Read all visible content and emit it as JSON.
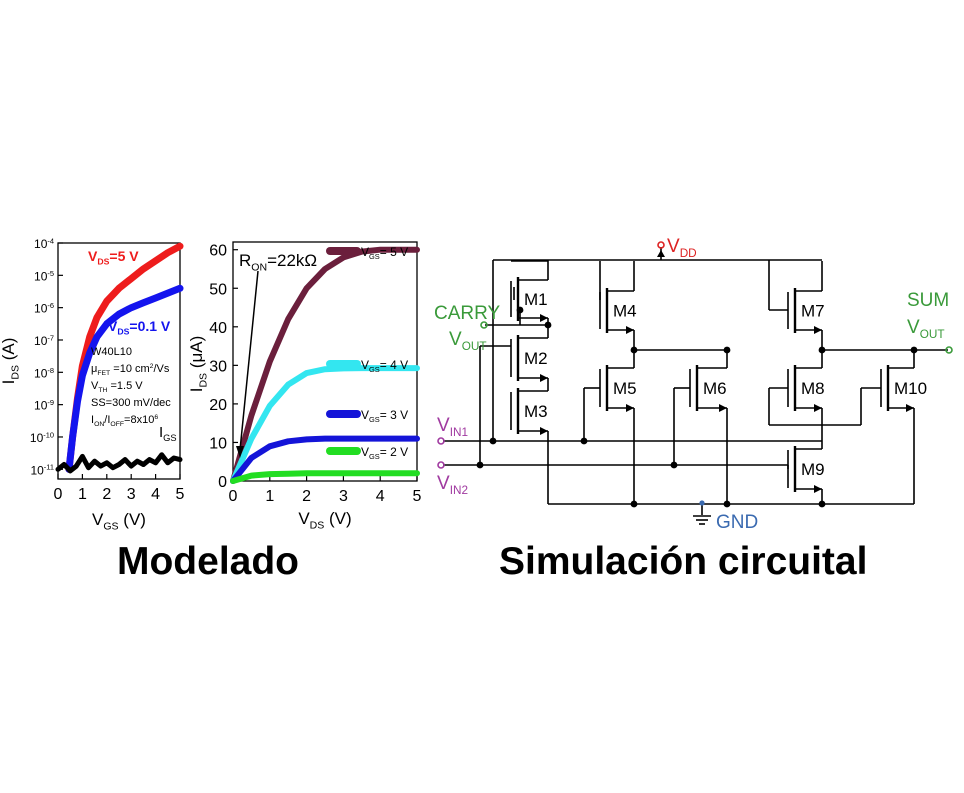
{
  "captions": {
    "left": "Modelado",
    "right": "Simulación circuital"
  },
  "colors": {
    "red": "#ee1c1c",
    "blue": "#1414ee",
    "black": "#000000",
    "maroon": "#6b1f3c",
    "cyan": "#33e6f0",
    "darkblue": "#1414d8",
    "green": "#22dd22",
    "circuit_green": "#3a9a3a",
    "circuit_purple": "#a03aa0",
    "circuit_red": "#dd2222",
    "circuit_blue": "#3a6ab0"
  },
  "chart_data": [
    {
      "type": "line",
      "xlabel": "V_GS (V)",
      "ylabel": "I_DS (A)",
      "y_scale": "log",
      "xlim": [
        0,
        5
      ],
      "ylim_exp": [
        -11.3,
        -4
      ],
      "x_ticks": [
        "0",
        "1",
        "2",
        "3",
        "4",
        "5"
      ],
      "y_ticks": [
        {
          "base": "10",
          "exp": "-4"
        },
        {
          "base": "10",
          "exp": "-5"
        },
        {
          "base": "10",
          "exp": "-6"
        },
        {
          "base": "10",
          "exp": "-7"
        },
        {
          "base": "10",
          "exp": "-8"
        },
        {
          "base": "10",
          "exp": "-9"
        },
        {
          "base": "10",
          "exp": "-10"
        },
        {
          "base": "10",
          "exp": "-11"
        }
      ],
      "series": [
        {
          "name": "V_DS=5 V",
          "label_main": "V",
          "label_sub": "DS",
          "label_rest": "=5 V",
          "color": "#ee1c1c",
          "x": [
            0.45,
            0.6,
            0.8,
            1.0,
            1.3,
            1.6,
            2.0,
            2.5,
            3.0,
            3.5,
            4.0,
            4.5,
            5.0
          ],
          "log10_y": [
            -11,
            -10.0,
            -8.8,
            -7.8,
            -6.9,
            -6.3,
            -5.8,
            -5.4,
            -5.1,
            -4.8,
            -4.55,
            -4.3,
            -4.1
          ]
        },
        {
          "name": "V_DS=0.1 V",
          "label_main": "V",
          "label_sub": "DS",
          "label_rest": "=0.1 V",
          "color": "#1414ee",
          "x": [
            0.45,
            0.6,
            0.8,
            1.0,
            1.3,
            1.6,
            2.0,
            2.5,
            3.0,
            3.5,
            4.0,
            4.5,
            5.0
          ],
          "log10_y": [
            -11,
            -10.0,
            -8.9,
            -8.1,
            -7.4,
            -6.9,
            -6.5,
            -6.2,
            -6.0,
            -5.85,
            -5.7,
            -5.55,
            -5.4
          ]
        },
        {
          "name": "I_GS",
          "label_main": "I",
          "label_sub": "GS",
          "label_rest": "",
          "color": "#000000",
          "x": [
            0,
            0.25,
            0.5,
            0.75,
            1.0,
            1.25,
            1.5,
            1.75,
            2.0,
            2.25,
            2.5,
            2.75,
            3.0,
            3.25,
            3.5,
            3.75,
            4.0,
            4.25,
            4.5,
            4.75,
            5.0
          ],
          "log10_y": [
            -11.0,
            -10.85,
            -11.05,
            -10.9,
            -10.6,
            -10.95,
            -10.75,
            -10.9,
            -10.8,
            -10.95,
            -10.85,
            -10.7,
            -10.9,
            -10.75,
            -10.85,
            -10.7,
            -10.8,
            -10.55,
            -10.8,
            -10.65,
            -10.7
          ]
        }
      ],
      "annotations": [
        "W40L10",
        {
          "main": "μ",
          "sub": "FET",
          "rest": " =10 cm",
          "sup": "2",
          "tail": "/Vs"
        },
        {
          "main": "V",
          "sub": "TH",
          "rest": " =1.5 V"
        },
        "SS=300 mV/dec",
        {
          "main": "I",
          "sub": "ON",
          "rest": "/I",
          "sub2": "OFF",
          "rest2": "=8x10",
          "sup": "6"
        }
      ]
    },
    {
      "type": "line",
      "xlabel": "V_DS (V)",
      "ylabel": "I_DS (μA)",
      "xlim": [
        0,
        5
      ],
      "ylim": [
        0,
        62
      ],
      "x_ticks": [
        "0",
        "1",
        "2",
        "3",
        "4",
        "5"
      ],
      "y_ticks": [
        "0",
        "10",
        "20",
        "30",
        "40",
        "50",
        "60"
      ],
      "series": [
        {
          "name": "V_GS= 5 V",
          "color": "#6b1f3c",
          "x": [
            0,
            0.5,
            1.0,
            1.5,
            2.0,
            2.5,
            3.0,
            3.5,
            4.0,
            4.5,
            5.0
          ],
          "y": [
            0,
            17,
            31,
            42,
            50,
            55,
            58,
            59.5,
            60,
            60,
            60
          ]
        },
        {
          "name": "V_GS= 4 V",
          "color": "#33e6f0",
          "x": [
            0,
            0.5,
            1.0,
            1.5,
            2.0,
            2.5,
            3.0,
            3.5,
            4.0,
            4.5,
            5.0
          ],
          "y": [
            0,
            11,
            19.5,
            25,
            28,
            29,
            29.2,
            29.3,
            29.3,
            29.3,
            29.3
          ]
        },
        {
          "name": "V_GS= 3 V",
          "color": "#1414d8",
          "x": [
            0,
            0.5,
            1.0,
            1.5,
            2.0,
            2.5,
            3.0,
            3.5,
            4.0,
            4.5,
            5.0
          ],
          "y": [
            0,
            6,
            9,
            10.3,
            10.8,
            11,
            11,
            11,
            11,
            11,
            11
          ]
        },
        {
          "name": "V_GS= 2 V",
          "color": "#22dd22",
          "x": [
            0,
            0.5,
            1.0,
            1.5,
            2.0,
            2.5,
            3.0,
            3.5,
            4.0,
            4.5,
            5.0
          ],
          "y": [
            0,
            1.4,
            1.8,
            1.9,
            2,
            2,
            2,
            2,
            2,
            2,
            2
          ]
        }
      ],
      "legend_labels": [
        {
          "main": "V",
          "sub": "GS",
          "rest": "= 5 V"
        },
        {
          "main": "V",
          "sub": "GS",
          "rest": "= 4 V"
        },
        {
          "main": "V",
          "sub": "GS",
          "rest": "= 3 V"
        },
        {
          "main": "V",
          "sub": "GS",
          "rest": "= 2 V"
        }
      ],
      "annotations": [
        {
          "main": "R",
          "sub": "ON",
          "rest": "=22kΩ"
        }
      ]
    }
  ],
  "circuit": {
    "labels": {
      "vdd": {
        "main": "V",
        "sub": "DD"
      },
      "gnd": "GND",
      "carry": "CARRY",
      "vout_left": {
        "main": "V",
        "sub": "OUT"
      },
      "sum": "SUM",
      "vout_right": {
        "main": "V",
        "sub": "OUT"
      },
      "vin1": {
        "main": "V",
        "sub": "IN1"
      },
      "vin2": {
        "main": "V",
        "sub": "IN2"
      }
    },
    "transistors": [
      "M1",
      "M2",
      "M3",
      "M4",
      "M5",
      "M6",
      "M7",
      "M8",
      "M9",
      "M10"
    ]
  }
}
